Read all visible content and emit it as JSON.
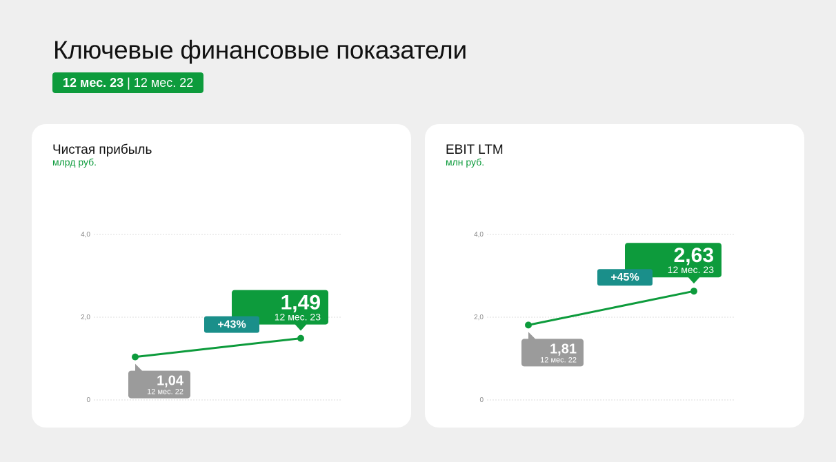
{
  "page": {
    "title": "Ключевые финансовые показатели",
    "period_toggle": {
      "active": "12 мес. 23",
      "separator": "|",
      "inactive": "12 мес. 22"
    }
  },
  "colors": {
    "accent_green": "#0d9b3c",
    "growth_teal": "#1a8f8a",
    "previous_gray": "#9b9b9b",
    "grid": "#dcdcdc"
  },
  "chart_data": [
    {
      "type": "line",
      "title": "Чистая прибыль",
      "unit": "млрд руб.",
      "yticks": [
        "0",
        "2,0",
        "4,0"
      ],
      "ylim": [
        0,
        4
      ],
      "grid": true,
      "points": [
        {
          "x": "12 мес. 22",
          "y": 1.04,
          "label": "1,04",
          "period": "12 мес. 22"
        },
        {
          "x": "12 мес. 23",
          "y": 1.49,
          "label": "1,49",
          "period": "12 мес. 23"
        }
      ],
      "growth": "+43%"
    },
    {
      "type": "line",
      "title": "EBIT LTM",
      "unit": "млн руб.",
      "yticks": [
        "0",
        "2,0",
        "4,0"
      ],
      "ylim": [
        0,
        4
      ],
      "grid": true,
      "points": [
        {
          "x": "12 мес. 22",
          "y": 1.81,
          "label": "1,81",
          "period": "12 мес. 22"
        },
        {
          "x": "12 мес. 23",
          "y": 2.63,
          "label": "2,63",
          "period": "12 мес. 23"
        }
      ],
      "growth": "+45%"
    }
  ]
}
